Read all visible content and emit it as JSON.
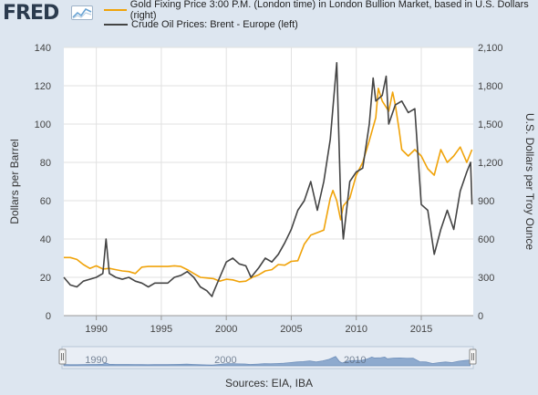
{
  "brand": {
    "logo_text": "FRED",
    "icon": "trend-chart-icon"
  },
  "footer": {
    "sources": "Sources: EIA, IBA"
  },
  "chart_data": {
    "type": "line",
    "xlim": [
      1987.5,
      2019.0
    ],
    "xticks": [
      1990,
      1995,
      2000,
      2005,
      2010,
      2015
    ],
    "xtick_labels": [
      "1990",
      "1995",
      "2000",
      "2005",
      "2010",
      "2015"
    ],
    "ylabel_left": "Dollars per Barrel",
    "ylim_left": [
      0,
      140
    ],
    "yticks_left": [
      "0",
      "20",
      "40",
      "60",
      "80",
      "100",
      "120",
      "140"
    ],
    "ylabel_right": "U.S. Dollars per Troy Ounce",
    "ylim_right": [
      0,
      2100
    ],
    "yticks_right": [
      "0",
      "300",
      "600",
      "900",
      "1,200",
      "1,500",
      "1,800",
      "2,100"
    ],
    "grid": true,
    "legend_position": "top",
    "series": [
      {
        "name": "Gold Fixing Price 3:00 P.M. (London time) in London Bullion Market, based in U.S. Dollars (right)",
        "axis": "right",
        "color": "#f0a30a",
        "x": [
          1987.5,
          1988.0,
          1988.5,
          1989.0,
          1989.5,
          1990.0,
          1990.5,
          1991.0,
          1991.5,
          1992.0,
          1992.5,
          1993.0,
          1993.5,
          1994.0,
          1994.5,
          1995.0,
          1995.5,
          1996.0,
          1996.5,
          1997.0,
          1997.5,
          1998.0,
          1998.5,
          1999.0,
          1999.5,
          2000.0,
          2000.5,
          2001.0,
          2001.5,
          2002.0,
          2002.5,
          2003.0,
          2003.5,
          2004.0,
          2004.5,
          2005.0,
          2005.5,
          2006.0,
          2006.5,
          2007.0,
          2007.5,
          2008.0,
          2008.2,
          2008.5,
          2008.8,
          2009.0,
          2009.5,
          2010.0,
          2010.5,
          2011.0,
          2011.5,
          2011.7,
          2012.0,
          2012.5,
          2012.8,
          2013.0,
          2013.3,
          2013.5,
          2014.0,
          2014.5,
          2015.0,
          2015.5,
          2016.0,
          2016.5,
          2017.0,
          2017.5,
          2018.0,
          2018.5,
          2018.9
        ],
        "y": [
          455,
          455,
          440,
          400,
          370,
          390,
          365,
          370,
          360,
          350,
          345,
          330,
          380,
          385,
          385,
          385,
          385,
          390,
          385,
          360,
          330,
          300,
          295,
          290,
          270,
          285,
          280,
          265,
          270,
          300,
          320,
          350,
          360,
          400,
          395,
          425,
          430,
          560,
          630,
          650,
          670,
          920,
          980,
          900,
          750,
          860,
          920,
          1100,
          1200,
          1370,
          1550,
          1780,
          1680,
          1600,
          1750,
          1650,
          1450,
          1300,
          1250,
          1300,
          1250,
          1150,
          1100,
          1300,
          1200,
          1250,
          1320,
          1200,
          1300
        ]
      },
      {
        "name": "Crude Oil Prices: Brent - Europe (left)",
        "axis": "left",
        "color": "#444444",
        "x": [
          1987.5,
          1988.0,
          1988.5,
          1989.0,
          1989.5,
          1990.0,
          1990.5,
          1990.75,
          1991.0,
          1991.5,
          1992.0,
          1992.5,
          1993.0,
          1993.5,
          1994.0,
          1994.5,
          1995.0,
          1995.5,
          1996.0,
          1996.5,
          1997.0,
          1997.5,
          1998.0,
          1998.5,
          1998.9,
          1999.0,
          1999.5,
          2000.0,
          2000.5,
          2001.0,
          2001.5,
          2001.9,
          2002.5,
          2003.0,
          2003.5,
          2004.0,
          2004.5,
          2005.0,
          2005.5,
          2006.0,
          2006.5,
          2007.0,
          2007.5,
          2008.0,
          2008.5,
          2008.8,
          2009.0,
          2009.5,
          2010.0,
          2010.5,
          2011.0,
          2011.3,
          2011.5,
          2012.0,
          2012.3,
          2012.5,
          2013.0,
          2013.5,
          2014.0,
          2014.5,
          2015.0,
          2015.5,
          2016.0,
          2016.5,
          2017.0,
          2017.5,
          2018.0,
          2018.5,
          2018.8,
          2018.9
        ],
        "y": [
          20,
          16,
          15,
          18,
          19,
          20,
          22,
          40,
          22,
          20,
          19,
          20,
          18,
          17,
          15,
          17,
          17,
          17,
          20,
          21,
          23,
          20,
          15,
          13,
          10,
          12,
          20,
          28,
          30,
          27,
          26,
          20,
          25,
          30,
          28,
          32,
          38,
          45,
          55,
          60,
          70,
          55,
          70,
          92,
          132,
          60,
          40,
          70,
          75,
          77,
          100,
          124,
          112,
          115,
          125,
          100,
          110,
          112,
          106,
          108,
          58,
          55,
          32,
          45,
          55,
          45,
          65,
          75,
          80,
          58
        ]
      }
    ]
  }
}
